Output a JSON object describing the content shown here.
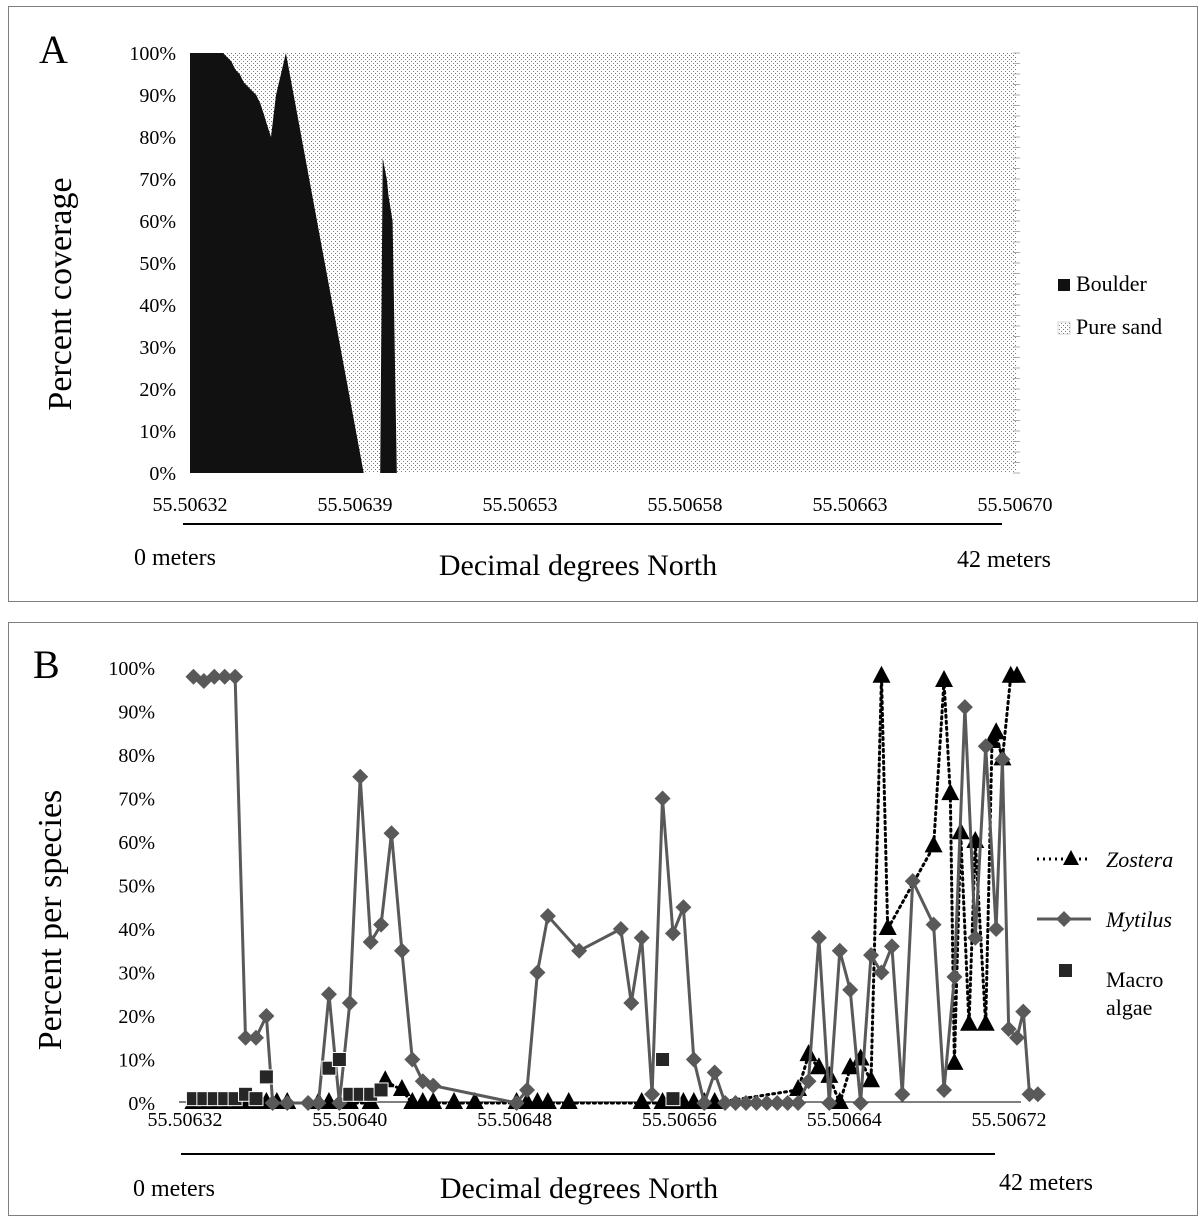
{
  "chart_data": [
    {
      "panel_label": "A",
      "type": "area",
      "stacked": true,
      "percent": true,
      "ylabel": "Percent coverage",
      "xlabel": "Decimal degrees North",
      "start_label": "0 meters",
      "end_label": "42 meters",
      "x_tick_labels": [
        "55.50632",
        "55.50639",
        "55.50653",
        "55.50658",
        "55.50663",
        "55.50670"
      ],
      "y_ticks": [
        "0%",
        "10%",
        "20%",
        "30%",
        "40%",
        "50%",
        "60%",
        "70%",
        "80%",
        "90%",
        "100%"
      ],
      "ylim": [
        0,
        100
      ],
      "xlim": [
        0,
        100
      ],
      "legend_position": "right",
      "series": [
        {
          "name": "Boulder",
          "color": "#111111",
          "points": [
            [
              0,
              100
            ],
            [
              0.5,
              100
            ],
            [
              1,
              100
            ],
            [
              2,
              100
            ],
            [
              3,
              100
            ],
            [
              3.5,
              100
            ],
            [
              4,
              100
            ],
            [
              4.5,
              99
            ],
            [
              5,
              98
            ],
            [
              5.5,
              96
            ],
            [
              6,
              95
            ],
            [
              6.5,
              93
            ],
            [
              7,
              92
            ],
            [
              7.5,
              91
            ],
            [
              8,
              90
            ],
            [
              8.5,
              88
            ],
            [
              9,
              85
            ],
            [
              9.3,
              83
            ],
            [
              9.8,
              80
            ],
            [
              10.4,
              90
            ],
            [
              11.6,
              100
            ],
            [
              21,
              0
            ],
            [
              21.5,
              0
            ],
            [
              22,
              0
            ],
            [
              22.5,
              0
            ],
            [
              22.8,
              0
            ],
            [
              23,
              0
            ],
            [
              23.3,
              75
            ],
            [
              23.8,
              70
            ],
            [
              24,
              66
            ],
            [
              24.5,
              60
            ],
            [
              25,
              0
            ],
            [
              26,
              0
            ],
            [
              100,
              0
            ]
          ]
        },
        {
          "name": "Pure sand",
          "color": "#dcdcdc"
        }
      ]
    },
    {
      "panel_label": "B",
      "type": "line",
      "ylabel": "Percent per species",
      "xlabel": "Decimal degrees North",
      "start_label": "0 meters",
      "end_label": "42 meters",
      "x_tick_labels": [
        "55.50632",
        "55.50640",
        "55.50648",
        "55.50656",
        "55.50664",
        "55.50672"
      ],
      "y_ticks": [
        "0%",
        "10%",
        "20%",
        "30%",
        "40%",
        "50%",
        "60%",
        "70%",
        "80%",
        "90%",
        "100%"
      ],
      "ylim": [
        0,
        100
      ],
      "xlim": [
        55.50632,
        55.50672
      ],
      "legend_position": "right",
      "series": [
        {
          "name": "Zostera",
          "style": "dotted",
          "marker": "triangle",
          "color": "#000000",
          "points": [
            [
              55.506325,
              0
            ],
            [
              55.50633,
              0
            ],
            [
              55.506335,
              0
            ],
            [
              55.50634,
              0
            ],
            [
              55.506345,
              0
            ],
            [
              55.50635,
              0
            ],
            [
              55.506355,
              0
            ],
            [
              55.50636,
              0
            ],
            [
              55.506365,
              0
            ],
            [
              55.50637,
              0
            ],
            [
              55.506385,
              0
            ],
            [
              55.50639,
              0
            ],
            [
              55.5064,
              0
            ],
            [
              55.50641,
              0
            ],
            [
              55.506417,
              5
            ],
            [
              55.506425,
              3
            ],
            [
              55.50643,
              0
            ],
            [
              55.506435,
              0
            ],
            [
              55.50644,
              0
            ],
            [
              55.50645,
              0
            ],
            [
              55.50646,
              0
            ],
            [
              55.50648,
              0
            ],
            [
              55.506485,
              0
            ],
            [
              55.50649,
              0
            ],
            [
              55.506495,
              0
            ],
            [
              55.506505,
              0
            ],
            [
              55.50654,
              0
            ],
            [
              55.50655,
              0
            ],
            [
              55.506555,
              0
            ],
            [
              55.50656,
              0
            ],
            [
              55.506565,
              0
            ],
            [
              55.50657,
              0
            ],
            [
              55.506575,
              0
            ],
            [
              55.506615,
              3
            ],
            [
              55.50662,
              11
            ],
            [
              55.506625,
              8
            ],
            [
              55.50663,
              6
            ],
            [
              55.506635,
              0
            ],
            [
              55.50664,
              8
            ],
            [
              55.506645,
              10
            ],
            [
              55.50665,
              5
            ],
            [
              55.506655,
              98
            ],
            [
              55.506658,
              40
            ],
            [
              55.50668,
              59
            ],
            [
              55.506685,
              97
            ],
            [
              55.506688,
              71
            ],
            [
              55.50669,
              9
            ],
            [
              55.506693,
              62
            ],
            [
              55.506697,
              18
            ],
            [
              55.5067,
              60
            ],
            [
              55.506705,
              18
            ],
            [
              55.506708,
              83
            ],
            [
              55.50671,
              85
            ],
            [
              55.506713,
              79
            ],
            [
              55.506717,
              98
            ],
            [
              55.50672,
              98
            ]
          ]
        },
        {
          "name": "Mytilus",
          "style": "solid",
          "marker": "diamond",
          "color": "#595959",
          "points": [
            [
              55.506325,
              98
            ],
            [
              55.50633,
              97
            ],
            [
              55.506335,
              98
            ],
            [
              55.50634,
              98
            ],
            [
              55.506345,
              98
            ],
            [
              55.50635,
              15
            ],
            [
              55.506355,
              15
            ],
            [
              55.50636,
              20
            ],
            [
              55.506363,
              0
            ],
            [
              55.50637,
              0
            ],
            [
              55.50638,
              0
            ],
            [
              55.506385,
              0
            ],
            [
              55.50639,
              25
            ],
            [
              55.506395,
              0
            ],
            [
              55.5064,
              23
            ],
            [
              55.506405,
              75
            ],
            [
              55.50641,
              37
            ],
            [
              55.506415,
              41
            ],
            [
              55.50642,
              62
            ],
            [
              55.506425,
              35
            ],
            [
              55.50643,
              10
            ],
            [
              55.506435,
              5
            ],
            [
              55.50644,
              4
            ],
            [
              55.50648,
              0
            ],
            [
              55.506485,
              3
            ],
            [
              55.50649,
              30
            ],
            [
              55.506495,
              43
            ],
            [
              55.50651,
              35
            ],
            [
              55.50653,
              40
            ],
            [
              55.506535,
              23
            ],
            [
              55.50654,
              38
            ],
            [
              55.506545,
              2
            ],
            [
              55.50655,
              70
            ],
            [
              55.506555,
              39
            ],
            [
              55.50656,
              45
            ],
            [
              55.506565,
              10
            ],
            [
              55.50657,
              0
            ],
            [
              55.506575,
              7
            ],
            [
              55.50658,
              0
            ],
            [
              55.506585,
              0
            ],
            [
              55.50659,
              0
            ],
            [
              55.506595,
              0
            ],
            [
              55.5066,
              0
            ],
            [
              55.506605,
              0
            ],
            [
              55.50661,
              0
            ],
            [
              55.506615,
              0
            ],
            [
              55.50662,
              5
            ],
            [
              55.506625,
              38
            ],
            [
              55.50663,
              0
            ],
            [
              55.506635,
              35
            ],
            [
              55.50664,
              26
            ],
            [
              55.506645,
              0
            ],
            [
              55.50665,
              34
            ],
            [
              55.506655,
              30
            ],
            [
              55.50666,
              36
            ],
            [
              55.506665,
              2
            ],
            [
              55.50667,
              51
            ],
            [
              55.50668,
              41
            ],
            [
              55.506685,
              3
            ],
            [
              55.50669,
              29
            ],
            [
              55.506695,
              91
            ],
            [
              55.5067,
              38
            ],
            [
              55.506705,
              82
            ],
            [
              55.50671,
              40
            ],
            [
              55.506713,
              79
            ],
            [
              55.506716,
              17
            ],
            [
              55.50672,
              15
            ],
            [
              55.506723,
              21
            ],
            [
              55.506726,
              2
            ],
            [
              55.50673,
              2
            ]
          ]
        },
        {
          "name": "Macro algae",
          "style": "none",
          "marker": "square",
          "color": "#262626",
          "points": [
            [
              55.506325,
              1
            ],
            [
              55.50633,
              1
            ],
            [
              55.506335,
              1
            ],
            [
              55.50634,
              1
            ],
            [
              55.506345,
              1
            ],
            [
              55.50635,
              2
            ],
            [
              55.506355,
              1
            ],
            [
              55.50636,
              6
            ],
            [
              55.50639,
              8
            ],
            [
              55.506395,
              10
            ],
            [
              55.5064,
              2
            ],
            [
              55.506405,
              2
            ],
            [
              55.50641,
              2
            ],
            [
              55.506415,
              3
            ],
            [
              55.50655,
              10
            ],
            [
              55.506555,
              1
            ]
          ]
        }
      ]
    }
  ]
}
